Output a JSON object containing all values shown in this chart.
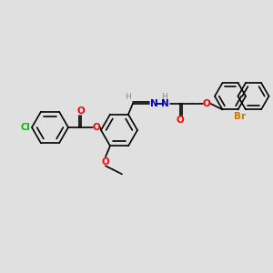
{
  "bg_color": "#e0e0e0",
  "bond_color": "#000000",
  "atom_colors": {
    "O": "#ff0000",
    "N": "#0000cc",
    "Cl": "#00bb00",
    "Br": "#cc7700",
    "H": "#8888aa",
    "C": "#000000"
  },
  "figsize": [
    3.0,
    3.0
  ],
  "dpi": 100
}
